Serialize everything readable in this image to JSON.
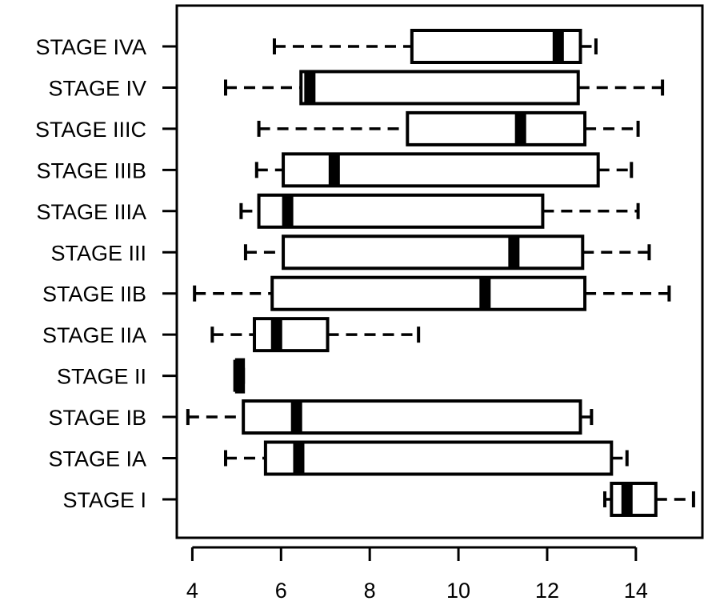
{
  "chart_data": {
    "type": "boxplot",
    "orientation": "horizontal",
    "title": "",
    "xlabel": "",
    "ylabel": "",
    "xlim": [
      3.65,
      15.5
    ],
    "xticks": [
      4,
      6,
      8,
      10,
      12,
      14
    ],
    "grid": false,
    "categories": [
      "STAGE IVA",
      "STAGE IV",
      "STAGE IIIC",
      "STAGE IIIB",
      "STAGE IIIA",
      "STAGE III",
      "STAGE IIB",
      "STAGE IIA",
      "STAGE II",
      "STAGE IB",
      "STAGE IA",
      "STAGE I"
    ],
    "boxes": [
      {
        "label": "STAGE IVA",
        "whisker_low": 5.85,
        "q1": 8.95,
        "median": 12.25,
        "q3": 12.75,
        "whisker_high": 13.1
      },
      {
        "label": "STAGE IV",
        "whisker_low": 4.75,
        "q1": 6.45,
        "median": 6.65,
        "q3": 12.7,
        "whisker_high": 14.6
      },
      {
        "label": "STAGE IIIC",
        "whisker_low": 5.5,
        "q1": 8.85,
        "median": 11.4,
        "q3": 12.85,
        "whisker_high": 14.05
      },
      {
        "label": "STAGE IIIB",
        "whisker_low": 5.45,
        "q1": 6.05,
        "median": 7.2,
        "q3": 13.15,
        "whisker_high": 13.9
      },
      {
        "label": "STAGE IIIA",
        "whisker_low": 5.1,
        "q1": 5.5,
        "median": 6.15,
        "q3": 11.9,
        "whisker_high": 14.05
      },
      {
        "label": "STAGE III",
        "whisker_low": 5.2,
        "q1": 6.05,
        "median": 11.25,
        "q3": 12.8,
        "whisker_high": 14.3
      },
      {
        "label": "STAGE IIB",
        "whisker_low": 4.05,
        "q1": 5.8,
        "median": 10.6,
        "q3": 12.85,
        "whisker_high": 14.75
      },
      {
        "label": "STAGE IIA",
        "whisker_low": 4.45,
        "q1": 5.4,
        "median": 5.9,
        "q3": 7.05,
        "whisker_high": 9.1
      },
      {
        "label": "STAGE II",
        "whisker_low": 5.0,
        "q1": 5.0,
        "median": 5.05,
        "q3": 5.15,
        "whisker_high": 5.15
      },
      {
        "label": "STAGE IB",
        "whisker_low": 3.9,
        "q1": 5.15,
        "median": 6.35,
        "q3": 12.75,
        "whisker_high": 13.0
      },
      {
        "label": "STAGE IA",
        "whisker_low": 4.75,
        "q1": 5.65,
        "median": 6.4,
        "q3": 13.45,
        "whisker_high": 13.8
      },
      {
        "label": "STAGE I",
        "whisker_low": 13.3,
        "q1": 13.45,
        "median": 13.8,
        "q3": 14.45,
        "whisker_high": 15.3
      }
    ]
  },
  "colors": {
    "stroke": "#000000",
    "box_fill": "#ffffff",
    "background": "#ffffff"
  }
}
